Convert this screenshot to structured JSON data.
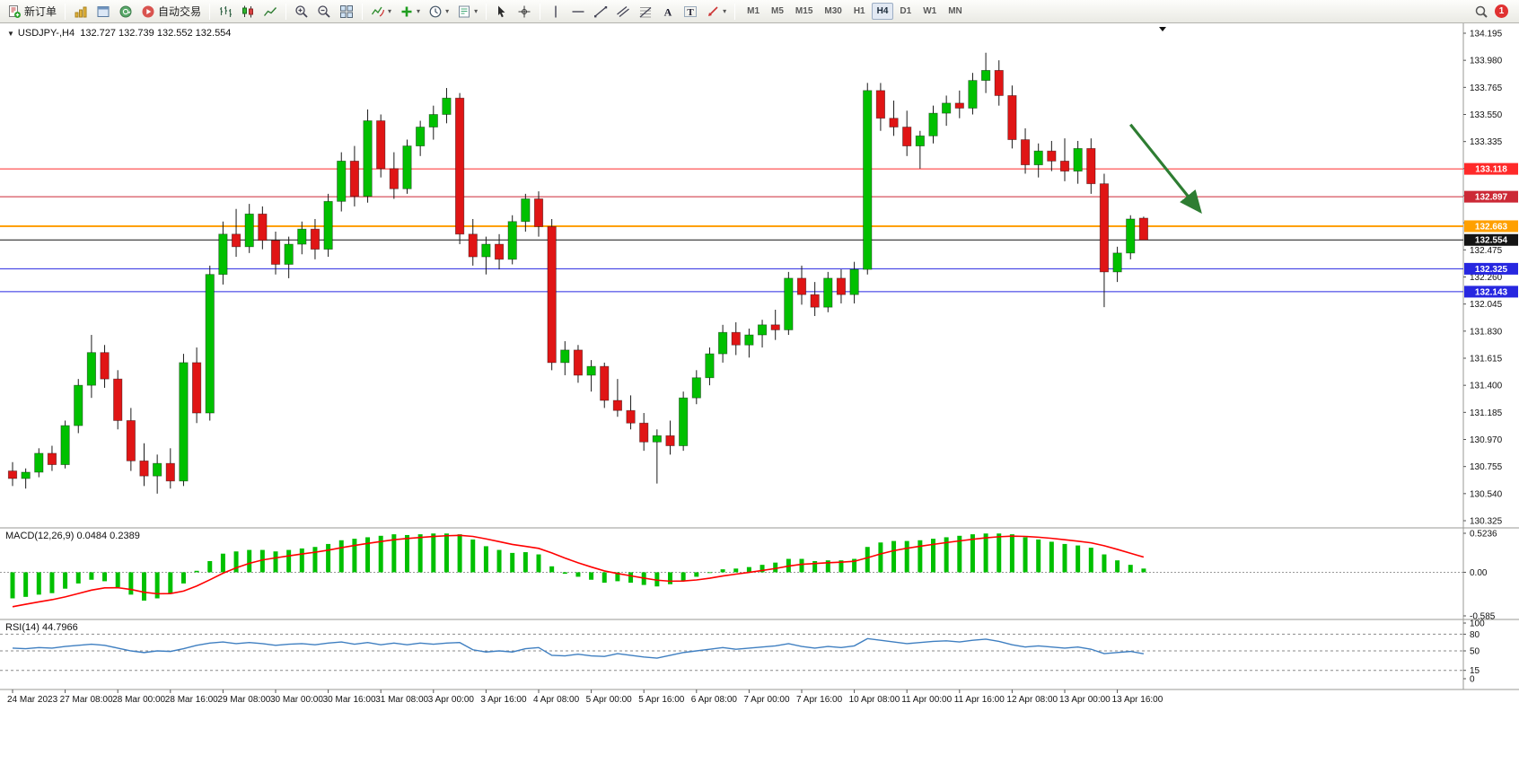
{
  "toolbar": {
    "new_order": "新订单",
    "autotrade": "自动交易",
    "timeframes": [
      "M1",
      "M5",
      "M15",
      "M30",
      "H1",
      "H4",
      "D1",
      "W1",
      "MN"
    ],
    "active_timeframe": "H4",
    "notification_count": "1"
  },
  "chart": {
    "title": "USDJPY-,H4  132.727 132.739 132.552 132.554",
    "macd_label": "MACD(12,26,9) 0.0484 0.2389",
    "rsi_label": "RSI(14) 44.7966"
  },
  "chart_data": {
    "type": "candlestick",
    "symbol": "USDJPY-",
    "timeframe": "H4",
    "ohlc_current": {
      "open": "132.727",
      "high": "132.739",
      "low": "132.552",
      "close": "132.554"
    },
    "price_min": 130.325,
    "price_max": 134.195,
    "price_ticks": [
      134.195,
      133.98,
      133.765,
      133.55,
      133.335,
      133.12,
      132.905,
      132.69,
      132.475,
      132.26,
      132.045,
      131.83,
      131.615,
      131.4,
      131.185,
      130.97,
      130.755,
      130.54,
      130.325
    ],
    "time_labels": [
      "24 Mar 2023",
      "27 Mar 08:00",
      "28 Mar 00:00",
      "28 Mar 16:00",
      "29 Mar 08:00",
      "30 Mar 00:00",
      "30 Mar 16:00",
      "31 Mar 08:00",
      "3 Apr 00:00",
      "3 Apr 16:00",
      "4 Apr 08:00",
      "5 Apr 00:00",
      "5 Apr 16:00",
      "6 Apr 08:00",
      "7 Apr 00:00",
      "7 Apr 16:00",
      "10 Apr 08:00",
      "11 Apr 00:00",
      "11 Apr 16:00",
      "12 Apr 08:00",
      "13 Apr 00:00",
      "13 Apr 16:00"
    ],
    "candles_per_label": 4,
    "colors": {
      "up": "#00c000",
      "down": "#e01515",
      "wick": "#1a1a1a"
    },
    "candles": [
      [
        130.72,
        130.79,
        130.6,
        130.66
      ],
      [
        130.66,
        130.74,
        130.58,
        130.71
      ],
      [
        130.71,
        130.9,
        130.67,
        130.86
      ],
      [
        130.86,
        130.92,
        130.72,
        130.77
      ],
      [
        130.77,
        131.12,
        130.74,
        131.08
      ],
      [
        131.08,
        131.45,
        131.02,
        131.4
      ],
      [
        131.4,
        131.8,
        131.3,
        131.66
      ],
      [
        131.66,
        131.72,
        131.38,
        131.45
      ],
      [
        131.45,
        131.52,
        131.05,
        131.12
      ],
      [
        131.12,
        131.22,
        130.72,
        130.8
      ],
      [
        130.8,
        130.94,
        130.6,
        130.68
      ],
      [
        130.68,
        130.85,
        130.54,
        130.78
      ],
      [
        130.78,
        130.9,
        130.58,
        130.64
      ],
      [
        130.64,
        131.65,
        130.6,
        131.58
      ],
      [
        131.58,
        131.7,
        131.1,
        131.18
      ],
      [
        131.18,
        132.35,
        131.12,
        132.28
      ],
      [
        132.28,
        132.7,
        132.2,
        132.6
      ],
      [
        132.6,
        132.8,
        132.42,
        132.5
      ],
      [
        132.5,
        132.84,
        132.45,
        132.76
      ],
      [
        132.76,
        132.82,
        132.48,
        132.55
      ],
      [
        132.55,
        132.62,
        132.28,
        132.36
      ],
      [
        132.36,
        132.58,
        132.25,
        132.52
      ],
      [
        132.52,
        132.7,
        132.44,
        132.64
      ],
      [
        132.64,
        132.72,
        132.4,
        132.48
      ],
      [
        132.48,
        132.92,
        132.42,
        132.86
      ],
      [
        132.86,
        133.25,
        132.78,
        133.18
      ],
      [
        133.18,
        133.3,
        132.82,
        132.9
      ],
      [
        132.9,
        133.59,
        132.85,
        133.5
      ],
      [
        133.5,
        133.55,
        133.05,
        133.12
      ],
      [
        133.12,
        133.25,
        132.88,
        132.96
      ],
      [
        132.96,
        133.35,
        132.92,
        133.3
      ],
      [
        133.3,
        133.5,
        133.22,
        133.45
      ],
      [
        133.45,
        133.62,
        133.35,
        133.55
      ],
      [
        133.55,
        133.76,
        133.48,
        133.68
      ],
      [
        133.68,
        133.72,
        132.52,
        132.6
      ],
      [
        132.6,
        132.72,
        132.35,
        132.42
      ],
      [
        132.42,
        132.58,
        132.28,
        132.52
      ],
      [
        132.52,
        132.6,
        132.32,
        132.4
      ],
      [
        132.4,
        132.75,
        132.36,
        132.7
      ],
      [
        132.7,
        132.92,
        132.62,
        132.88
      ],
      [
        132.88,
        132.94,
        132.58,
        132.66
      ],
      [
        132.66,
        132.72,
        131.52,
        131.58
      ],
      [
        131.58,
        131.75,
        131.48,
        131.68
      ],
      [
        131.68,
        131.72,
        131.42,
        131.48
      ],
      [
        131.48,
        131.6,
        131.35,
        131.55
      ],
      [
        131.55,
        131.58,
        131.22,
        131.28
      ],
      [
        131.28,
        131.45,
        131.15,
        131.2
      ],
      [
        131.2,
        131.32,
        131.05,
        131.1
      ],
      [
        131.1,
        131.18,
        130.88,
        130.95
      ],
      [
        130.95,
        131.05,
        130.62,
        131.0
      ],
      [
        131.0,
        131.12,
        130.85,
        130.92
      ],
      [
        130.92,
        131.35,
        130.88,
        131.3
      ],
      [
        131.3,
        131.52,
        131.25,
        131.46
      ],
      [
        131.46,
        131.7,
        131.4,
        131.65
      ],
      [
        131.65,
        131.88,
        131.58,
        131.82
      ],
      [
        131.82,
        131.9,
        131.64,
        131.72
      ],
      [
        131.72,
        131.85,
        131.62,
        131.8
      ],
      [
        131.8,
        131.92,
        131.7,
        131.88
      ],
      [
        131.88,
        132.0,
        131.76,
        131.84
      ],
      [
        131.84,
        132.3,
        131.8,
        132.25
      ],
      [
        132.25,
        132.35,
        132.04,
        132.12
      ],
      [
        132.12,
        132.22,
        131.95,
        132.02
      ],
      [
        132.02,
        132.3,
        131.98,
        132.25
      ],
      [
        132.25,
        132.32,
        132.05,
        132.12
      ],
      [
        132.12,
        132.38,
        132.05,
        132.32
      ],
      [
        132.32,
        133.8,
        132.28,
        133.74
      ],
      [
        133.74,
        133.8,
        133.42,
        133.52
      ],
      [
        133.52,
        133.66,
        133.38,
        133.45
      ],
      [
        133.45,
        133.58,
        133.22,
        133.3
      ],
      [
        133.3,
        133.42,
        133.12,
        133.38
      ],
      [
        133.38,
        133.62,
        133.32,
        133.56
      ],
      [
        133.56,
        133.7,
        133.46,
        133.64
      ],
      [
        133.64,
        133.74,
        133.52,
        133.6
      ],
      [
        133.6,
        133.88,
        133.55,
        133.82
      ],
      [
        133.82,
        134.04,
        133.72,
        133.9
      ],
      [
        133.9,
        133.98,
        133.62,
        133.7
      ],
      [
        133.7,
        133.78,
        133.28,
        133.35
      ],
      [
        133.35,
        133.44,
        133.08,
        133.15
      ],
      [
        133.15,
        133.32,
        133.05,
        133.26
      ],
      [
        133.26,
        133.34,
        133.1,
        133.18
      ],
      [
        133.18,
        133.36,
        133.02,
        133.1
      ],
      [
        133.1,
        133.34,
        133.0,
        133.28
      ],
      [
        133.28,
        133.36,
        132.92,
        133.0
      ],
      [
        133.0,
        133.08,
        132.02,
        132.3
      ],
      [
        132.3,
        132.5,
        132.22,
        132.45
      ],
      [
        132.45,
        132.75,
        132.4,
        132.72
      ],
      [
        132.727,
        132.739,
        132.552,
        132.554
      ]
    ],
    "hlines": [
      {
        "value": 133.118,
        "label": "133.118",
        "color": "#ff2a2a",
        "width": 1
      },
      {
        "value": 132.897,
        "label": "132.897",
        "color": "#cc2936",
        "width": 1
      },
      {
        "value": 132.663,
        "label": "132.663",
        "color": "#ffa000",
        "width": 2
      },
      {
        "value": 132.554,
        "label": "132.554",
        "color": "#141414",
        "width": 1
      },
      {
        "value": 132.325,
        "label": "132.325",
        "color": "#2727e0",
        "width": 1
      },
      {
        "value": 132.143,
        "label": "132.143",
        "color": "#2727e0",
        "width": 1
      }
    ],
    "trend_arrow": {
      "from_index": 85,
      "from_price": 133.47,
      "to_index": 90.3,
      "to_price": 132.78,
      "color": "#2e7d32"
    },
    "macd": {
      "params": "12,26,9",
      "main_value": 0.0484,
      "signal_value": 0.2389,
      "axis_max": 0.5236,
      "axis_min": -0.585,
      "axis_labels": [
        "0.5236",
        "0.00",
        "-0.585"
      ],
      "hist_color": "#00c000",
      "signal_color": "#ff0000",
      "signal_seed": -0.5,
      "histogram": [
        -0.35,
        -0.33,
        -0.3,
        -0.28,
        -0.22,
        -0.15,
        -0.1,
        -0.12,
        -0.2,
        -0.3,
        -0.38,
        -0.35,
        -0.28,
        -0.15,
        0.02,
        0.15,
        0.25,
        0.28,
        0.3,
        0.3,
        0.28,
        0.3,
        0.32,
        0.34,
        0.38,
        0.43,
        0.45,
        0.47,
        0.49,
        0.51,
        0.5,
        0.51,
        0.52,
        0.52,
        0.51,
        0.44,
        0.35,
        0.3,
        0.26,
        0.27,
        0.24,
        0.08,
        -0.02,
        -0.06,
        -0.1,
        -0.14,
        -0.12,
        -0.14,
        -0.17,
        -0.19,
        -0.16,
        -0.11,
        -0.06,
        -0.01,
        0.04,
        0.05,
        0.07,
        0.1,
        0.13,
        0.18,
        0.18,
        0.15,
        0.16,
        0.16,
        0.18,
        0.34,
        0.4,
        0.42,
        0.42,
        0.43,
        0.45,
        0.47,
        0.49,
        0.51,
        0.52,
        0.52,
        0.51,
        0.47,
        0.44,
        0.41,
        0.38,
        0.36,
        0.33,
        0.24,
        0.16,
        0.1,
        0.05
      ]
    },
    "rsi": {
      "period": 14,
      "value": 44.7966,
      "axis_labels": [
        "100",
        "80",
        "50",
        "15",
        "0"
      ],
      "axis_values": [
        100,
        80,
        50,
        15,
        0
      ],
      "levels": [
        80,
        50,
        15
      ],
      "line_color": "#3f7fc1",
      "values": [
        55,
        54,
        56,
        55,
        58,
        60,
        62,
        60,
        55,
        50,
        47,
        50,
        49,
        54,
        60,
        64,
        66,
        63,
        65,
        63,
        60,
        62,
        63,
        61,
        64,
        66,
        62,
        65,
        61,
        64,
        61,
        64,
        62,
        64,
        65,
        52,
        48,
        50,
        48,
        54,
        56,
        42,
        41,
        44,
        41,
        40,
        45,
        42,
        39,
        37,
        42,
        47,
        50,
        53,
        56,
        53,
        55,
        57,
        59,
        63,
        58,
        55,
        58,
        56,
        59,
        72,
        69,
        66,
        63,
        65,
        67,
        68,
        66,
        69,
        71,
        67,
        61,
        57,
        59,
        57,
        55,
        57,
        53,
        45,
        47,
        49,
        44.8
      ]
    }
  }
}
